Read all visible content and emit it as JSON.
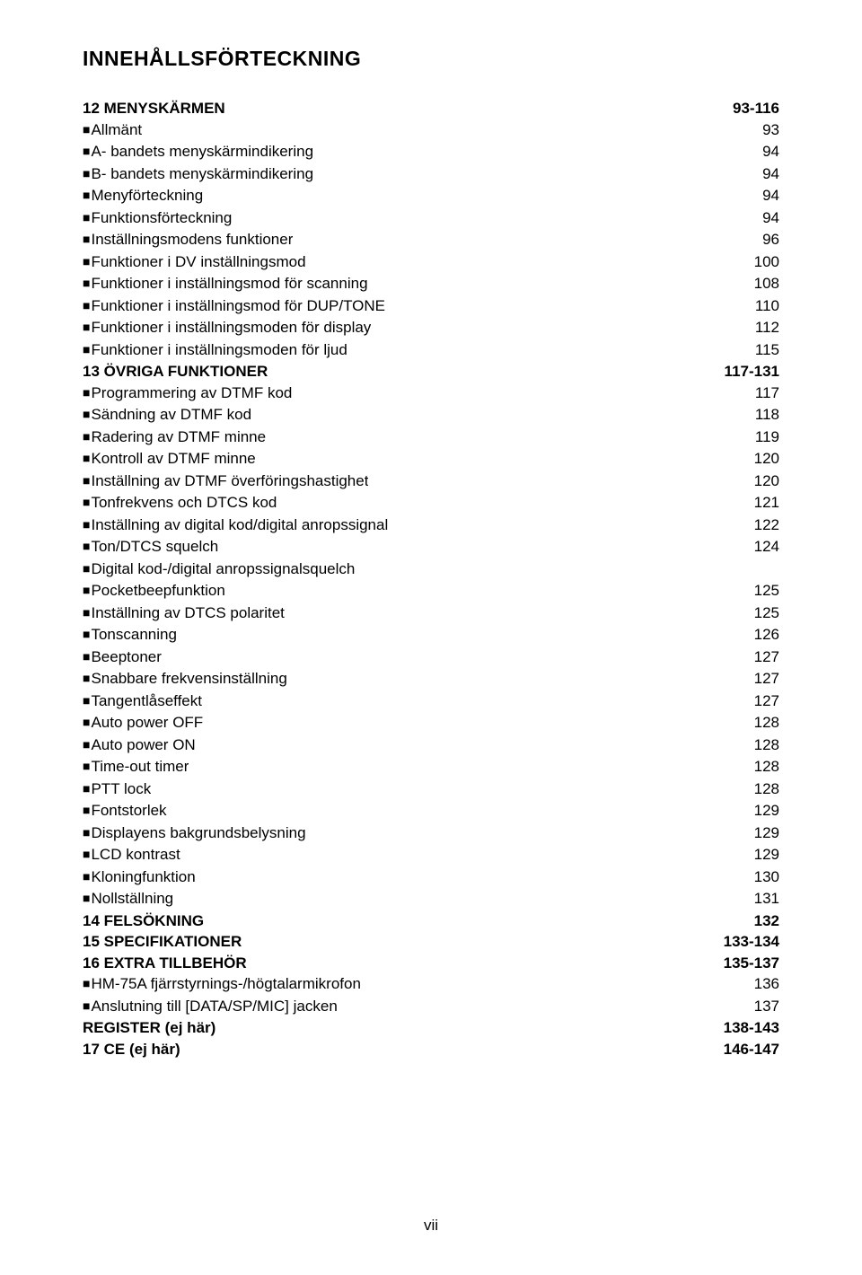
{
  "title": "INNEHÅLLSFÖRTECKNING",
  "footer": "vii",
  "entries": [
    {
      "label": "12 MENYSKÄRMEN",
      "page": "93-116",
      "section": true
    },
    {
      "label": "Allmänt",
      "page": "93",
      "bullet": true
    },
    {
      "label": "A- bandets menyskärmindikering",
      "page": "94",
      "bullet": true
    },
    {
      "label": "B- bandets menyskärmindikering",
      "page": "94",
      "bullet": true
    },
    {
      "label": "Menyförteckning",
      "page": "94",
      "bullet": true
    },
    {
      "label": "Funktionsförteckning",
      "page": "94",
      "bullet": true
    },
    {
      "label": "Inställningsmodens funktioner",
      "page": "96",
      "bullet": true
    },
    {
      "label": "Funktioner i DV inställningsmod",
      "page": "100",
      "bullet": true
    },
    {
      "label": "Funktioner i inställningsmod för scanning",
      "page": "108",
      "bullet": true
    },
    {
      "label": "Funktioner i inställningsmod för DUP/TONE",
      "page": "110",
      "bullet": true
    },
    {
      "label": "Funktioner i inställningsmoden för display",
      "page": "112",
      "bullet": true
    },
    {
      "label": "Funktioner i inställningsmoden för ljud",
      "page": "115",
      "bullet": true
    },
    {
      "label": "13 ÖVRIGA FUNKTIONER",
      "page": "117-131",
      "section": true
    },
    {
      "label": "Programmering av DTMF kod",
      "page": "117",
      "bullet": true
    },
    {
      "label": "Sändning av DTMF kod",
      "page": "118",
      "bullet": true
    },
    {
      "label": "Radering av DTMF minne",
      "page": "119",
      "bullet": true
    },
    {
      "label": "Kontroll av DTMF minne",
      "page": "120",
      "bullet": true
    },
    {
      "label": "Inställning av DTMF överföringshastighet",
      "page": "120",
      "bullet": true
    },
    {
      "label": "Tonfrekvens och DTCS kod",
      "page": "121",
      "bullet": true
    },
    {
      "label": "Inställning av digital kod/digital anropssignal",
      "page": "122",
      "bullet": true
    },
    {
      "label": "Ton/DTCS squelch",
      "page": "124",
      "bullet": true
    },
    {
      "label": "Digital kod-/digital anropssignalsquelch",
      "page": "",
      "bullet": true
    },
    {
      "label": "Pocketbeepfunktion",
      "page": "125",
      "bullet": true
    },
    {
      "label": "Inställning av DTCS polaritet",
      "page": "125",
      "bullet": true
    },
    {
      "label": "Tonscanning",
      "page": "126",
      "bullet": true
    },
    {
      "label": "Beeptoner",
      "page": "127",
      "bullet": true
    },
    {
      "label": "Snabbare frekvensinställning",
      "page": "127",
      "bullet": true
    },
    {
      "label": "Tangentlåseffekt",
      "page": "127",
      "bullet": true
    },
    {
      "label": "Auto power OFF",
      "page": "128",
      "bullet": true
    },
    {
      "label": "Auto power ON",
      "page": "128",
      "bullet": true
    },
    {
      "label": "Time-out timer",
      "page": "128",
      "bullet": true
    },
    {
      "label": "PTT lock",
      "page": "128",
      "bullet": true
    },
    {
      "label": "Fontstorlek",
      "page": "129",
      "bullet": true
    },
    {
      "label": "Displayens bakgrundsbelysning",
      "page": "129",
      "bullet": true
    },
    {
      "label": "LCD kontrast",
      "page": "129",
      "bullet": true
    },
    {
      "label": "Kloningfunktion",
      "page": "130",
      "bullet": true
    },
    {
      "label": "Nollställning",
      "page": "131",
      "bullet": true
    },
    {
      "label": "14 FELSÖKNING",
      "page": "132",
      "section": true
    },
    {
      "label": "15 SPECIFIKATIONER",
      "page": "133-134",
      "section": true
    },
    {
      "label": "16 EXTRA TILLBEHÖR",
      "page": "135-137",
      "section": true
    },
    {
      "label": "HM-75A fjärrstyrnings-/högtalarmikrofon",
      "page": "136",
      "bullet": true
    },
    {
      "label": "Anslutning till [DATA/SP/MIC] jacken",
      "page": "137",
      "bullet": true
    },
    {
      "label": "REGISTER (ej här)",
      "page": "138-143",
      "section": true
    },
    {
      "label": "17 CE (ej här)",
      "page": "146-147",
      "section": true
    }
  ]
}
